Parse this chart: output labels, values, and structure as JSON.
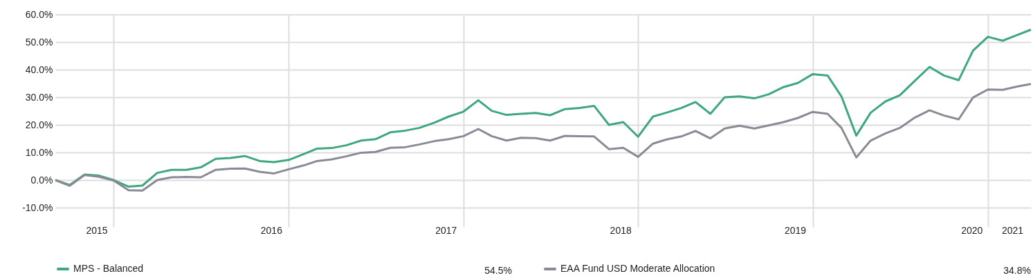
{
  "chart_data": {
    "type": "line",
    "x": [
      "2015-09-01",
      "2015-10-01",
      "2015-11-01",
      "2015-12-01",
      "2016-01-01",
      "2016-02-01",
      "2016-03-01",
      "2016-04-01",
      "2016-05-01",
      "2016-06-01",
      "2016-07-01",
      "2016-08-01",
      "2016-09-01",
      "2016-10-01",
      "2016-11-01",
      "2016-12-01",
      "2017-01-01",
      "2017-02-01",
      "2017-03-01",
      "2017-04-01",
      "2017-05-01",
      "2017-06-01",
      "2017-07-01",
      "2017-08-01",
      "2017-09-01",
      "2017-10-01",
      "2017-11-01",
      "2017-12-01",
      "2018-01-01",
      "2018-02-01",
      "2018-03-01",
      "2018-04-01",
      "2018-05-01",
      "2018-06-01",
      "2018-07-01",
      "2018-08-01",
      "2018-09-01",
      "2018-10-01",
      "2018-11-01",
      "2018-12-01",
      "2019-01-01",
      "2019-02-01",
      "2019-03-01",
      "2019-04-01",
      "2019-05-01",
      "2019-06-01",
      "2019-07-01",
      "2019-08-01",
      "2019-09-01",
      "2019-10-01",
      "2019-11-01",
      "2019-12-01",
      "2020-01-01",
      "2020-02-01",
      "2020-03-01",
      "2020-04-01",
      "2020-05-01",
      "2020-06-01",
      "2020-07-01",
      "2020-08-01",
      "2020-09-01",
      "2020-10-01",
      "2020-11-01",
      "2020-12-01",
      "2021-01-01",
      "2021-02-01",
      "2021-03-01",
      "2021-04-01"
    ],
    "series": [
      {
        "name": "MPS - Balanced",
        "color": "#3fa77d",
        "values": [
          0,
          -1.8,
          2.0,
          1.6,
          0,
          -2.4,
          -2.0,
          2.6,
          3.7,
          3.7,
          4.6,
          7.7,
          8.0,
          8.7,
          6.9,
          6.5,
          7.3,
          9.4,
          11.4,
          11.6,
          12.6,
          14.3,
          14.8,
          17.3,
          17.9,
          18.9,
          20.8,
          23.0,
          24.8,
          28.9,
          25.1,
          23.6,
          24.0,
          24.3,
          23.5,
          25.7,
          26.1,
          26.9,
          20.0,
          21.0,
          15.7,
          23.0,
          24.4,
          26.1,
          28.3,
          24.0,
          30.0,
          30.3,
          29.6,
          31.1,
          33.7,
          35.2,
          38.4,
          37.9,
          30.3,
          16.1,
          24.4,
          28.5,
          30.7,
          35.9,
          41.0,
          37.9,
          36.2,
          46.9,
          51.9,
          50.5,
          52.4,
          54.5
        ]
      },
      {
        "name": "EAA Fund USD Moderate Allocation",
        "color": "#8a8a96",
        "values": [
          0,
          -2.1,
          1.8,
          1.2,
          -0.2,
          -3.7,
          -3.8,
          0,
          1.0,
          1.1,
          1.0,
          3.7,
          4.1,
          4.2,
          3.0,
          2.4,
          3.9,
          5.3,
          6.9,
          7.5,
          8.6,
          9.9,
          10.2,
          11.7,
          11.9,
          12.9,
          14.1,
          14.8,
          15.9,
          18.5,
          15.9,
          14.3,
          15.3,
          15.2,
          14.3,
          16.0,
          15.9,
          15.8,
          11.2,
          11.7,
          8.4,
          13.2,
          14.7,
          15.8,
          17.8,
          15.1,
          18.7,
          19.7,
          18.7,
          19.8,
          21.0,
          22.5,
          24.7,
          24.0,
          18.9,
          8.2,
          14.3,
          16.9,
          18.9,
          22.6,
          25.3,
          23.4,
          22.0,
          29.9,
          32.8,
          32.7,
          33.8,
          34.8
        ]
      }
    ],
    "ylim": [
      -13.5,
      60
    ],
    "yticks": [
      {
        "value": -10,
        "label": "-10.0%"
      },
      {
        "value": 0,
        "label": "0.0%"
      },
      {
        "value": 10,
        "label": "10.0%"
      },
      {
        "value": 20,
        "label": "20.0%"
      },
      {
        "value": 30,
        "label": "30.0%"
      },
      {
        "value": 40,
        "label": "40.0%"
      },
      {
        "value": 50,
        "label": "50.0%"
      },
      {
        "value": 60,
        "label": "60.0%"
      }
    ],
    "xlim": [
      "2015-09-01",
      "2021-04-01"
    ],
    "xticks": [
      {
        "value": "2015-11-26",
        "label": "2015"
      },
      {
        "value": "2016-01-01",
        "label": null
      },
      {
        "value": "2016-11-25",
        "label": "2016"
      },
      {
        "value": "2017-01-01",
        "label": null
      },
      {
        "value": "2017-11-25",
        "label": "2017"
      },
      {
        "value": "2018-01-01",
        "label": null
      },
      {
        "value": "2018-11-25",
        "label": "2018"
      },
      {
        "value": "2019-01-01",
        "label": null
      },
      {
        "value": "2019-11-25",
        "label": "2019"
      },
      {
        "value": "2020-01-01",
        "label": null
      },
      {
        "value": "2020-11-28",
        "label": "2020"
      },
      {
        "value": "2021-01-01",
        "label": null
      },
      {
        "value": "2021-02-21",
        "label": "2021"
      }
    ],
    "annotations": [
      "54.5%",
      "34.8%"
    ],
    "grid": true,
    "legend": "bottom",
    "marker": "none",
    "line_style": "solid"
  }
}
